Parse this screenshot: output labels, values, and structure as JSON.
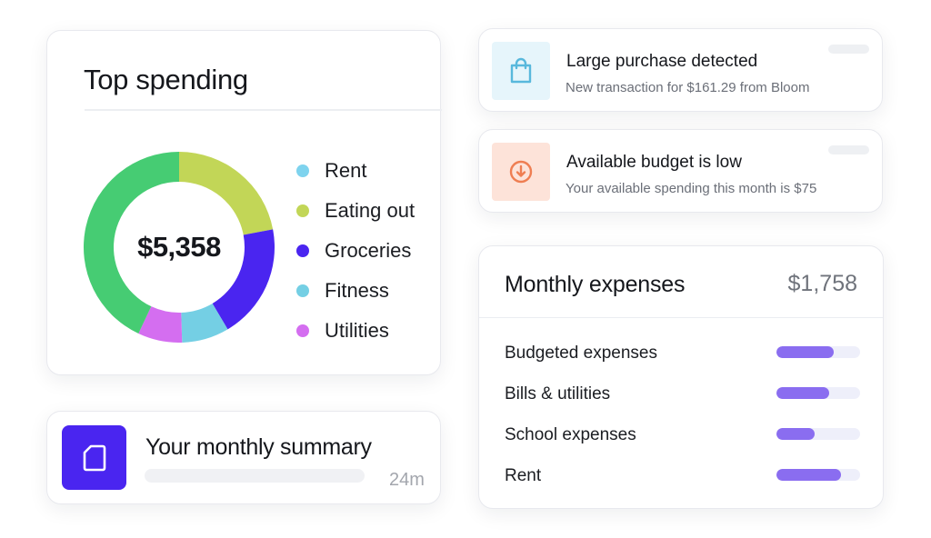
{
  "top_spending": {
    "title": "Top spending",
    "total": "$5,358",
    "categories": [
      {
        "label": "Rent",
        "color": "#7ed3ee",
        "share": 0
      },
      {
        "label": "Eating out",
        "color": "#c2d657",
        "share": 0.22
      },
      {
        "label": "Groceries",
        "color": "#4a25f0",
        "share": 0.195
      },
      {
        "label": "Fitness",
        "color": "#74cfe4",
        "share": 0.08
      },
      {
        "label": "Utilities",
        "color": "#d46ef0",
        "share": 0.075
      },
      {
        "label": "",
        "color": "#46cc73",
        "share": 0.43
      }
    ]
  },
  "summary": {
    "title": "Your monthly summary",
    "time": "24m",
    "icon": "document-icon"
  },
  "notifications": [
    {
      "title": "Large purchase detected",
      "subtitle": "New transaction for $161.29 from Bloom",
      "icon": "shopping-bag-icon",
      "icon_bg": "#e6f5fb",
      "icon_color": "#58b8dc"
    },
    {
      "title": "Available budget is low",
      "subtitle": "Your available spending this month is $75",
      "icon": "download-circle-icon",
      "icon_bg": "#fde3d9",
      "icon_color": "#ef7e52"
    }
  ],
  "monthly_expenses": {
    "title": "Monthly expenses",
    "total": "$1,758",
    "items": [
      {
        "label": "Budgeted expenses",
        "progress": 0.69
      },
      {
        "label": "Bills & utilities",
        "progress": 0.63
      },
      {
        "label": "School expenses",
        "progress": 0.46
      },
      {
        "label": "Rent",
        "progress": 0.77
      }
    ]
  }
}
